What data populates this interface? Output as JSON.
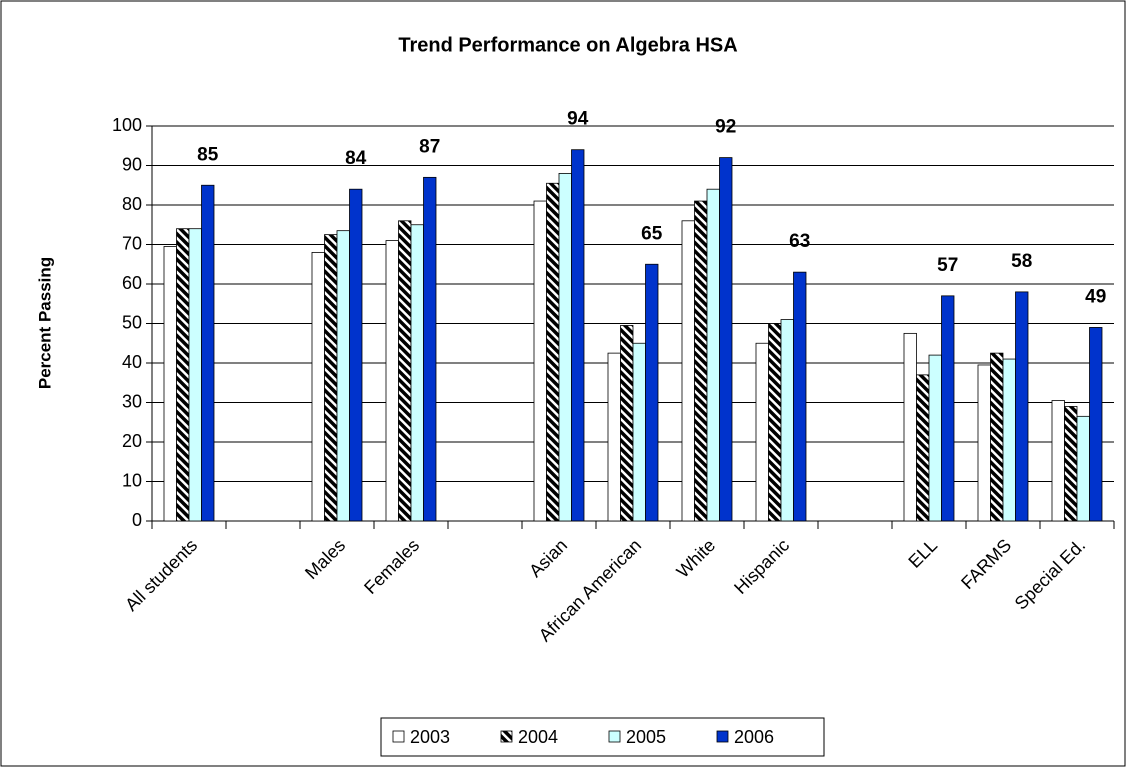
{
  "chart_data": {
    "type": "bar",
    "title": "Trend Performance on Algebra HSA",
    "ylabel": "Percent Passing",
    "categories": [
      "All students",
      null,
      "Males",
      "Females",
      null,
      "Asian",
      "African American",
      "White",
      "Hispanic",
      null,
      "ELL",
      "FARMS",
      "Special Ed."
    ],
    "series": [
      {
        "name": "2003",
        "color": "#ffffff",
        "values": [
          69.5,
          null,
          68,
          71,
          null,
          81,
          42.5,
          76,
          45,
          null,
          47.5,
          39.5,
          30.5
        ]
      },
      {
        "name": "2004",
        "color": "#000000",
        "hatch": true,
        "values": [
          74,
          null,
          72.5,
          76,
          null,
          85.5,
          49.5,
          81,
          50,
          null,
          37,
          42.5,
          29
        ]
      },
      {
        "name": "2005",
        "color": "#ccffff",
        "values": [
          74,
          null,
          73.5,
          75,
          null,
          88,
          45,
          84,
          51,
          null,
          42,
          41,
          26.5
        ]
      },
      {
        "name": "2006",
        "color": "#0033cc",
        "values": [
          85,
          null,
          84,
          87,
          null,
          94,
          65,
          92,
          63,
          null,
          57,
          58,
          49
        ],
        "show_labels": true
      }
    ],
    "ylim": [
      0,
      100
    ],
    "yticks": [
      0,
      10,
      20,
      30,
      40,
      50,
      60,
      70,
      80,
      90,
      100
    ],
    "grid": true,
    "legend": "bottom"
  }
}
